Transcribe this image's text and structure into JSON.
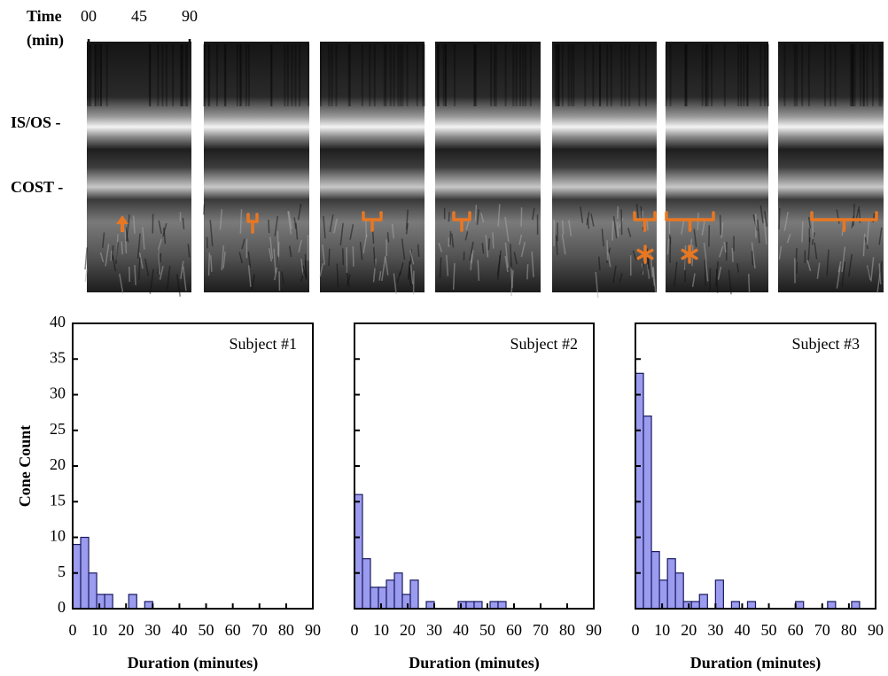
{
  "image_panel": {
    "time_label": [
      "Time",
      "(min)"
    ],
    "time_ticks": [
      "00",
      "45",
      "90"
    ],
    "layer_labels": [
      "IS/OS -",
      "COST -"
    ],
    "marker_color": "#e87722"
  },
  "chart_data": [
    {
      "type": "histogram",
      "title": "Subject #1",
      "xlabel": "Duration (minutes)",
      "ylabel": "Cone Count",
      "color": "#9b9bef",
      "bins": [
        0,
        3,
        6,
        9,
        12,
        15,
        18,
        21,
        24,
        27,
        30,
        33,
        36,
        39,
        42,
        45,
        48,
        51,
        54,
        57,
        60,
        63,
        66,
        69,
        72,
        75,
        78,
        81,
        84,
        87,
        90
      ],
      "values": [
        9,
        10,
        5,
        2,
        2,
        0,
        0,
        2,
        0,
        1,
        0,
        0,
        0,
        0,
        0,
        0,
        0,
        0,
        0,
        0,
        0,
        0,
        0,
        0,
        0,
        0,
        0,
        0,
        0,
        0
      ],
      "xlim": [
        0,
        90
      ],
      "xticks": [
        0,
        10,
        20,
        30,
        40,
        50,
        60,
        70,
        80,
        90
      ],
      "ylim": [
        0,
        40
      ],
      "yticks": [
        0,
        5,
        10,
        15,
        20,
        25,
        30,
        35,
        40
      ],
      "ytick_labels": true
    },
    {
      "type": "histogram",
      "title": "Subject #2",
      "xlabel": "Duration (minutes)",
      "color": "#9b9bef",
      "bins": [
        0,
        3,
        6,
        9,
        12,
        15,
        18,
        21,
        24,
        27,
        30,
        33,
        36,
        39,
        42,
        45,
        48,
        51,
        54,
        57,
        60,
        63,
        66,
        69,
        72,
        75,
        78,
        81,
        84,
        87,
        90
      ],
      "values": [
        16,
        7,
        3,
        3,
        4,
        5,
        2,
        4,
        0,
        1,
        0,
        0,
        0,
        1,
        1,
        1,
        0,
        1,
        1,
        0,
        0,
        0,
        0,
        0,
        0,
        0,
        0,
        0,
        0,
        0
      ],
      "xlim": [
        0,
        90
      ],
      "xticks": [
        0,
        10,
        20,
        30,
        40,
        50,
        60,
        70,
        80,
        90
      ],
      "ylim": [
        0,
        40
      ],
      "yticks": [
        0,
        5,
        10,
        15,
        20,
        25,
        30,
        35,
        40
      ],
      "ytick_labels": false
    },
    {
      "type": "histogram",
      "title": "Subject #3",
      "xlabel": "Duration (minutes)",
      "color": "#9b9bef",
      "bins": [
        0,
        3,
        6,
        9,
        12,
        15,
        18,
        21,
        24,
        27,
        30,
        33,
        36,
        39,
        42,
        45,
        48,
        51,
        54,
        57,
        60,
        63,
        66,
        69,
        72,
        75,
        78,
        81,
        84,
        87,
        90
      ],
      "values": [
        33,
        27,
        8,
        4,
        7,
        5,
        1,
        1,
        2,
        0,
        4,
        0,
        1,
        0,
        1,
        0,
        0,
        0,
        0,
        0,
        1,
        0,
        0,
        0,
        1,
        0,
        0,
        1,
        0,
        0
      ],
      "xlim": [
        0,
        90
      ],
      "xticks": [
        0,
        10,
        20,
        30,
        40,
        50,
        60,
        70,
        80,
        90
      ],
      "ylim": [
        0,
        40
      ],
      "yticks": [
        0,
        5,
        10,
        15,
        20,
        25,
        30,
        35,
        40
      ],
      "ytick_labels": false
    }
  ]
}
